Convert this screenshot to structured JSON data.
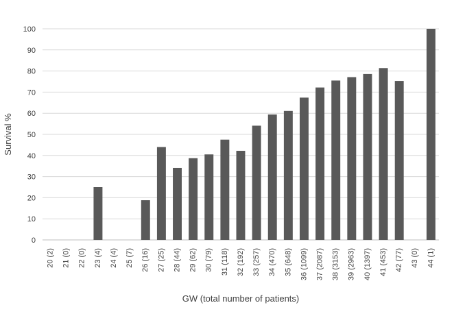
{
  "chart_data": {
    "type": "bar",
    "title": "",
    "xlabel": "GW (total number of patients)",
    "ylabel": "Survival %",
    "ylim": [
      0,
      100
    ],
    "yticks": [
      0,
      10,
      20,
      30,
      40,
      50,
      60,
      70,
      80,
      90,
      100
    ],
    "grid": true,
    "legend": "none",
    "bar_color": "#595959",
    "categories": [
      "20 (2)",
      "21 (0)",
      "22 (0)",
      "23 (4)",
      "24 (4)",
      "25 (7)",
      "26 (16)",
      "27 (25)",
      "28 (44)",
      "29 (62)",
      "30 (79)",
      "31 (118)",
      "32 (192)",
      "33 (257)",
      "34 (470)",
      "35 (648)",
      "36 (1099)",
      "37 (2087)",
      "38 (3153)",
      "39 (2963)",
      "40 (1397)",
      "41 (453)",
      "42 (77)",
      "43 (0)",
      "44 (1)"
    ],
    "values": [
      0,
      0,
      0,
      25,
      0,
      0,
      18.8,
      44,
      34.1,
      38.7,
      40.5,
      47.5,
      42.2,
      54.1,
      59.4,
      61.1,
      67.4,
      72.2,
      75.5,
      77.1,
      78.6,
      81.4,
      75.3,
      0,
      100
    ]
  }
}
